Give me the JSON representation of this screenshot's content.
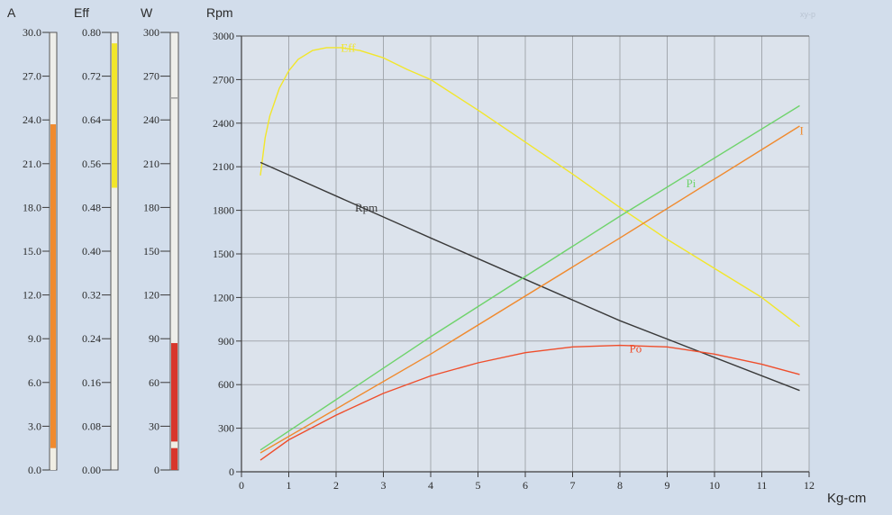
{
  "watermark": "xy-p",
  "colors": {
    "background": "#d2ddeb",
    "plot_bg": "#dce3ec",
    "grid": "#a3a8ae",
    "axis": "#3c3c3c",
    "current": "#f08a2e",
    "efficiency": "#f2e62a",
    "input_power": "#6fd36c",
    "output_power": "#ef4e2c",
    "rpm": "#3a3a3a",
    "gauge_red": "#d8362b"
  },
  "gauges": [
    {
      "key": "amps",
      "title": "A",
      "ticks": [
        "30.0",
        "27.0",
        "24.0",
        "21.0",
        "18.0",
        "15.0",
        "12.0",
        "9.0",
        "6.0",
        "3.0",
        "0.0"
      ],
      "level": 0.79,
      "fill_color": "#f08a2e"
    },
    {
      "key": "eff",
      "title": "Eff",
      "ticks": [
        "0.80",
        "0.72",
        "0.64",
        "0.56",
        "0.48",
        "0.40",
        "0.32",
        "0.24",
        "0.16",
        "0.08",
        "0.00"
      ],
      "band": [
        0.645,
        0.975
      ],
      "fill_color": "#f2e62a"
    },
    {
      "key": "watts",
      "title": "W",
      "ticks": [
        "300",
        "270",
        "240",
        "210",
        "180",
        "150",
        "120",
        "90",
        "60",
        "30",
        "0"
      ],
      "level": 0.29,
      "fill_color": "#d8362b",
      "segments": [
        0.05
      ]
    }
  ],
  "chart_data": {
    "type": "line",
    "ylabel": "Rpm",
    "xlabel": "Kg-cm",
    "xlim": [
      0,
      12
    ],
    "ylim": [
      0,
      3000
    ],
    "xticks": [
      "0",
      "1",
      "2",
      "3",
      "4",
      "5",
      "6",
      "7",
      "8",
      "9",
      "10",
      "11",
      "12"
    ],
    "yticks": [
      "0",
      "300",
      "600",
      "900",
      "1200",
      "1500",
      "1800",
      "2100",
      "2400",
      "2700",
      "3000"
    ],
    "series": [
      {
        "name": "Eff",
        "label_pos": [
          2.1,
          2890
        ],
        "color": "#f2e62a",
        "x": [
          0.4,
          0.5,
          0.6,
          0.8,
          1.0,
          1.2,
          1.5,
          1.8,
          2.1,
          2.5,
          3.0,
          3.5,
          4.0,
          5.0,
          6.0,
          7.0,
          8.0,
          9.0,
          10.0,
          11.0,
          11.8
        ],
        "y": [
          2040,
          2300,
          2450,
          2640,
          2760,
          2840,
          2900,
          2920,
          2920,
          2900,
          2850,
          2770,
          2700,
          2490,
          2270,
          2050,
          1820,
          1600,
          1400,
          1200,
          1000
        ]
      },
      {
        "name": "Rpm",
        "label_pos": [
          2.4,
          1790
        ],
        "color": "#3a3a3a",
        "x": [
          0.4,
          4.0,
          8.0,
          11.8
        ],
        "y": [
          2130,
          1610,
          1040,
          560
        ]
      },
      {
        "name": "Pi",
        "label_pos": [
          9.4,
          1960
        ],
        "color": "#6fd36c",
        "x": [
          0.4,
          4.0,
          8.0,
          11.8
        ],
        "y": [
          150,
          930,
          1760,
          2520
        ]
      },
      {
        "name": "I",
        "label_pos": [
          11.8,
          2320
        ],
        "color": "#f08a2e",
        "x": [
          0.4,
          4.0,
          8.0,
          11.8
        ],
        "y": [
          130,
          810,
          1610,
          2380
        ]
      },
      {
        "name": "Po",
        "label_pos": [
          8.2,
          820
        ],
        "color": "#ef4e2c",
        "x": [
          0.4,
          1.0,
          2.0,
          3.0,
          4.0,
          5.0,
          6.0,
          7.0,
          8.0,
          9.0,
          10.0,
          11.0,
          11.8
        ],
        "y": [
          80,
          220,
          390,
          540,
          660,
          750,
          820,
          860,
          870,
          860,
          810,
          740,
          670
        ]
      }
    ]
  }
}
